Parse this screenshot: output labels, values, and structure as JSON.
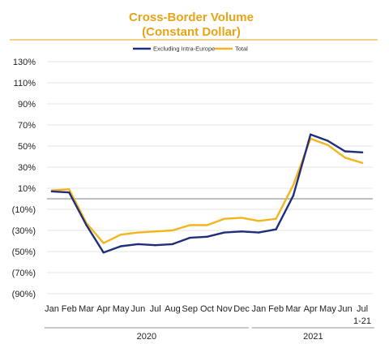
{
  "chart_data": {
    "type": "line",
    "title": "Cross-Border Volume",
    "subtitle": "(Constant Dollar)",
    "categories": [
      "Jan",
      "Feb",
      "Mar",
      "Apr",
      "May",
      "Jun",
      "Jul",
      "Aug",
      "Sep",
      "Oct",
      "Nov",
      "Dec",
      "Jan",
      "Feb",
      "Mar",
      "Apr",
      "May",
      "Jun",
      "Jul 1-21"
    ],
    "category_lines": [
      [
        "Jan"
      ],
      [
        "Feb"
      ],
      [
        "Mar"
      ],
      [
        "Apr"
      ],
      [
        "May"
      ],
      [
        "Jun"
      ],
      [
        "Jul"
      ],
      [
        "Aug"
      ],
      [
        "Sep"
      ],
      [
        "Oct"
      ],
      [
        "Nov"
      ],
      [
        "Dec"
      ],
      [
        "Jan"
      ],
      [
        "Feb"
      ],
      [
        "Mar"
      ],
      [
        "Apr"
      ],
      [
        "May"
      ],
      [
        "Jun"
      ],
      [
        "Jul",
        "1-21"
      ]
    ],
    "groups": [
      {
        "label": "2020",
        "start": 0,
        "end": 11
      },
      {
        "label": "2021",
        "start": 12,
        "end": 18
      }
    ],
    "y_ticks": [
      {
        "value": 130,
        "label": "130%"
      },
      {
        "value": 110,
        "label": "110%"
      },
      {
        "value": 90,
        "label": "90%"
      },
      {
        "value": 70,
        "label": "70%"
      },
      {
        "value": 50,
        "label": "50%"
      },
      {
        "value": 30,
        "label": "30%"
      },
      {
        "value": 10,
        "label": "10%"
      },
      {
        "value": -10,
        "label": "(10%)"
      },
      {
        "value": -30,
        "label": "(30%)"
      },
      {
        "value": -50,
        "label": "(50%)"
      },
      {
        "value": -70,
        "label": "(70%)"
      },
      {
        "value": -90,
        "label": "(90%)"
      }
    ],
    "ylim": [
      -90,
      130
    ],
    "grid": true,
    "legend_position": "top",
    "series": [
      {
        "name": "Excluding Intra-Europe",
        "color": "#1F2E7A",
        "values": [
          7,
          6,
          -25,
          -51,
          -45,
          -43,
          -44,
          -43,
          -37,
          -36,
          -32,
          -31,
          -32,
          -29,
          3,
          61,
          55,
          45,
          44
        ]
      },
      {
        "name": "Total",
        "color": "#F2B51D",
        "values": [
          8,
          9,
          -23,
          -42,
          -34,
          -32,
          -31,
          -30,
          -25,
          -25,
          -19,
          -18,
          -21,
          -19,
          13,
          57,
          51,
          39,
          34
        ]
      }
    ]
  }
}
